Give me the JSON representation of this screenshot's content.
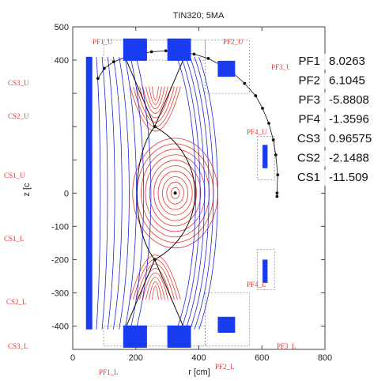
{
  "chart_data": {
    "type": "line",
    "title": "TIN320; 5MA",
    "xlabel": "r [cm]",
    "ylabel": "z [c",
    "xlim": [
      0,
      800
    ],
    "ylim": [
      -470,
      500
    ],
    "x_ticks": [
      0,
      200,
      400,
      600,
      800
    ],
    "y_ticks": [
      500,
      400,
      300,
      200,
      100,
      0,
      -100,
      -200,
      -300,
      -400
    ],
    "y_tick_labels": [
      "500",
      "400",
      "",
      "",
      "",
      "0",
      "-100",
      "-200",
      "-300",
      "-400"
    ],
    "grid": false,
    "colors": {
      "coil": "#1a3cf0",
      "field_lines_open": "#1a28d8",
      "flux_surfaces_closed": "#e8342c",
      "separatrix": "#111111",
      "boundary_marker": "#111111",
      "coil_label": "#e53935"
    },
    "coils": [
      {
        "name": "CS1_U",
        "r_min": 42,
        "r_max": 62,
        "z_min": -410,
        "z_max": 410
      },
      {
        "name": "PF1_U",
        "r_min": 160,
        "r_max": 235,
        "z_min": 398,
        "z_max": 465
      },
      {
        "name": "PF2_U",
        "r_min": 300,
        "r_max": 375,
        "z_min": 398,
        "z_max": 465
      },
      {
        "name": "PF3_U",
        "r_min": 460,
        "r_max": 515,
        "z_min": 350,
        "z_max": 398
      },
      {
        "name": "PF4_U",
        "r_min": 602,
        "r_max": 618,
        "z_min": 75,
        "z_max": 145
      },
      {
        "name": "PF4_L",
        "r_min": 602,
        "r_max": 618,
        "z_min": -270,
        "z_max": -200
      },
      {
        "name": "PF3_L",
        "r_min": 460,
        "r_max": 515,
        "z_min": -420,
        "z_max": -372
      },
      {
        "name": "PF1_L",
        "r_min": 160,
        "r_max": 235,
        "z_min": -465,
        "z_max": -398
      },
      {
        "name": "PF2_L",
        "r_min": 300,
        "r_max": 375,
        "z_min": -465,
        "z_max": -398
      }
    ],
    "coil_labels": [
      "PF1_U",
      "PF2_U",
      "PF3_U",
      "CS3_U",
      "CS2_U",
      "CS1_U",
      "CS1_L",
      "CS2_L",
      "CS3_L",
      "PF1_L",
      "PF2_L",
      "PF3_L",
      "PF4_U",
      "PF4_L"
    ],
    "currents": [
      {
        "name": "PF1",
        "value": "8.0263"
      },
      {
        "name": "PF2",
        "value": "6.1045"
      },
      {
        "name": "PF3",
        "value": "-5.8808"
      },
      {
        "name": "PF4",
        "value": "-1.3596"
      },
      {
        "name": "CS3",
        "value": "0.96575"
      },
      {
        "name": "CS2",
        "value": "-2.1488"
      },
      {
        "name": "CS1",
        "value": "-11.509"
      }
    ],
    "magnetic_axis": {
      "r": 325,
      "z": 0
    },
    "x_points": [
      {
        "r": 260,
        "z": 200
      },
      {
        "r": 260,
        "z": -200
      }
    ],
    "vessel_boundary_points": [
      [
        80,
        345
      ],
      [
        100,
        375
      ],
      [
        130,
        395
      ],
      [
        165,
        408
      ],
      [
        205,
        418
      ],
      [
        250,
        425
      ],
      [
        295,
        428
      ],
      [
        340,
        425
      ],
      [
        385,
        418
      ],
      [
        430,
        405
      ],
      [
        470,
        385
      ],
      [
        510,
        360
      ],
      [
        545,
        330
      ],
      [
        580,
        293
      ],
      [
        602,
        255
      ],
      [
        622,
        210
      ],
      [
        636,
        160
      ],
      [
        644,
        115
      ],
      [
        650,
        55
      ],
      [
        648,
        0
      ],
      [
        648,
        -10
      ]
    ]
  }
}
